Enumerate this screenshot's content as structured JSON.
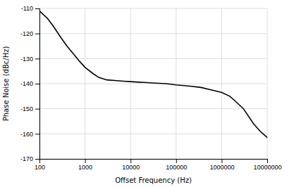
{
  "chart_data": {
    "type": "line",
    "xlabel": "Offset Frequency (Hz)",
    "ylabel": "Phase Noise (dBc/Hz)",
    "x": [
      100,
      150,
      200,
      280,
      400,
      550,
      750,
      1000,
      1500,
      2000,
      3000,
      5000,
      7000,
      10000,
      15000,
      20000,
      35000,
      60000,
      100000,
      200000,
      350000,
      600000,
      1000000,
      1500000,
      2000000,
      3000000,
      5000000,
      7000000,
      10000000
    ],
    "values": [
      -111,
      -114,
      -117,
      -121,
      -125,
      -128,
      -131,
      -133.5,
      -136,
      -137.5,
      -138.5,
      -138.8,
      -139,
      -139.2,
      -139.4,
      -139.5,
      -139.8,
      -140.0,
      -140.5,
      -141.0,
      -141.5,
      -142.5,
      -143.5,
      -145.0,
      -147.0,
      -150.0,
      -156.0,
      -159.0,
      -161.5
    ],
    "color": "#000000",
    "xlim": [
      100,
      10000000
    ],
    "ylim": [
      -170,
      -110
    ],
    "xticks": [
      100,
      1000,
      10000,
      100000,
      1000000,
      10000000
    ],
    "yticks": [
      -170,
      -160,
      -150,
      -140,
      -130,
      -120,
      -110
    ],
    "log": "x",
    "grid": true
  }
}
